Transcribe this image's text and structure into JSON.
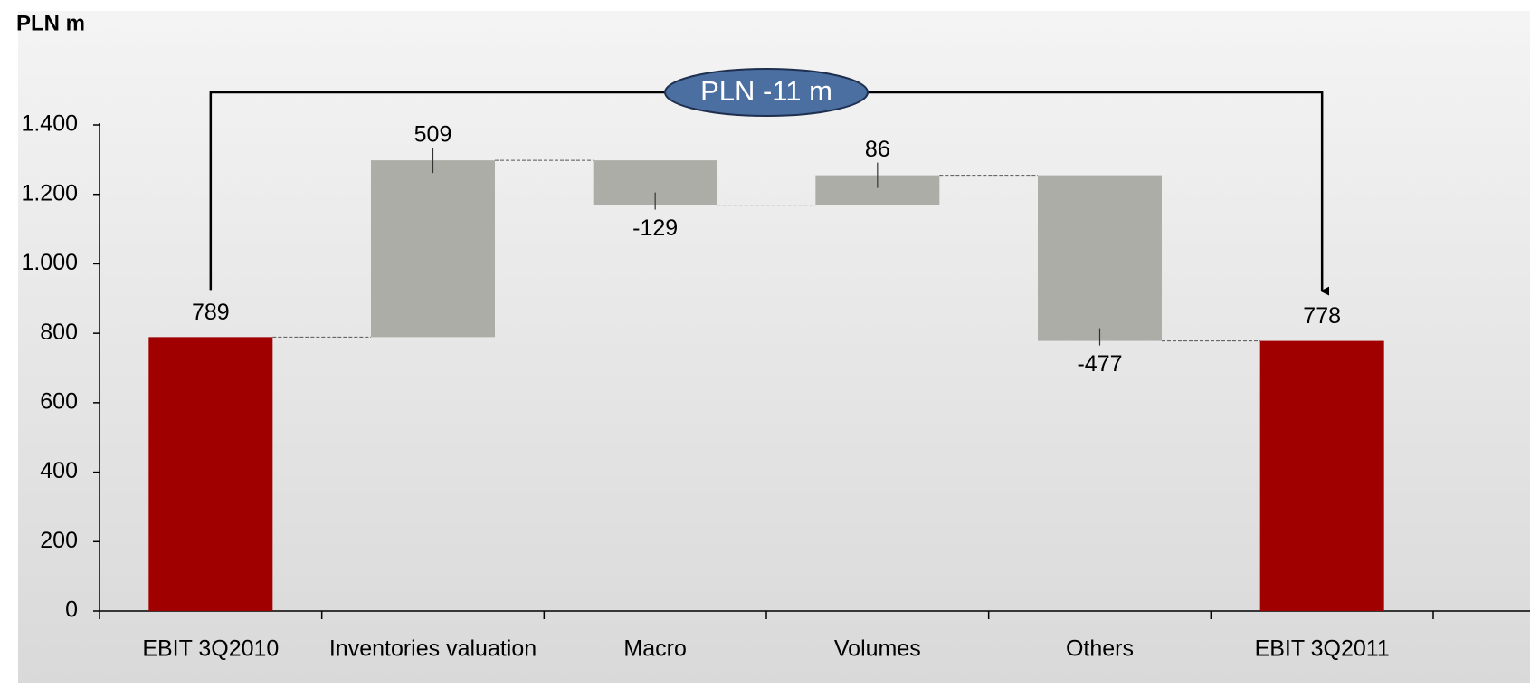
{
  "chart_data": {
    "type": "waterfall",
    "y_label": "PLN m",
    "categories": [
      "EBIT 3Q2010",
      "Inventories valuation",
      "Macro",
      "Volumes",
      "Others",
      "EBIT 3Q2011"
    ],
    "values": [
      789,
      509,
      -129,
      86,
      -477,
      778
    ],
    "is_total": [
      true,
      false,
      false,
      false,
      false,
      true
    ],
    "total_color": "#a00000",
    "delta_color": "#adada8",
    "ylim": [
      0,
      1400
    ],
    "yticks": [
      0,
      200,
      400,
      600,
      800,
      {
        "value": 1000,
        "label": "1.000"
      },
      {
        "value": 1200,
        "label": "1.200"
      },
      {
        "value": 1400,
        "label": "1.400"
      }
    ],
    "annotation": {
      "text": "PLN -11 m",
      "color": "#4a6fa0"
    }
  }
}
